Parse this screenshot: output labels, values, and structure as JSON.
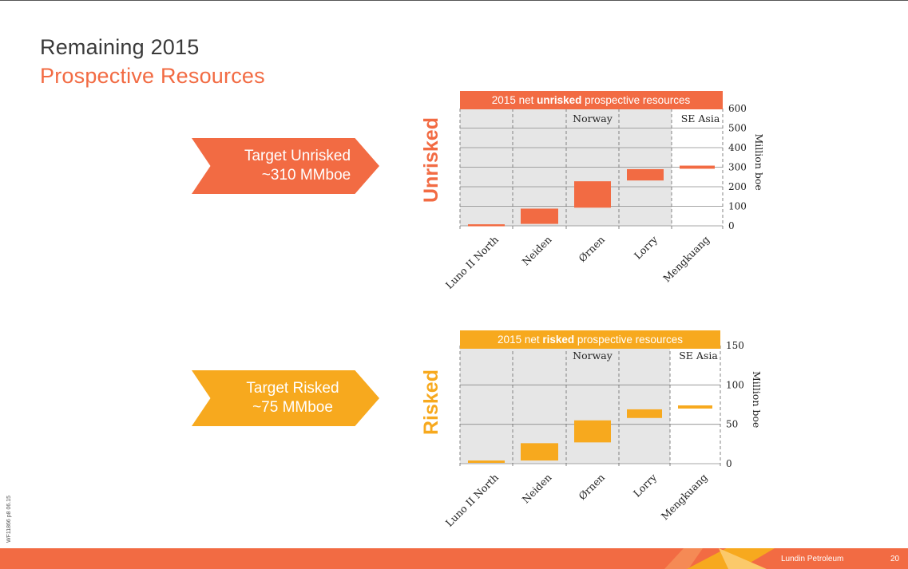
{
  "slide": {
    "title_line1": "Remaining 2015",
    "title_line2": "Prospective Resources",
    "side_code": "WF11866 p8 06.15",
    "footer_company": "Lundin Petroleum",
    "page_number": "20"
  },
  "arrows": {
    "unrisked_line1": "Target Unrisked",
    "unrisked_line2": "~310 MMboe",
    "risked_line1": "Target Risked",
    "risked_line2": "~75 MMboe"
  },
  "side_labels": {
    "unrisked": "Unrisked",
    "risked": "Risked"
  },
  "colors": {
    "orange": "#f26b43",
    "amber": "#f7a91e",
    "panel": "#e6e6e6",
    "text": "#3a3a3a"
  },
  "chart_data": [
    {
      "type": "bar",
      "subtype": "waterfall",
      "title_parts": [
        "2015 net ",
        "unrisked",
        " prospective resources"
      ],
      "ylabel": "Million boe",
      "ylim": [
        0,
        600
      ],
      "yticks": [
        "0",
        "100",
        "200",
        "300",
        "400",
        "500",
        "600"
      ],
      "categories": [
        "Luno II North",
        "Neiden",
        "Ørnen",
        "Lorry",
        "Mengkuang"
      ],
      "values": [
        8,
        78,
        135,
        58,
        16
      ],
      "starts": [
        0,
        10,
        93,
        232,
        292
      ],
      "region_labels": [
        "Norway",
        "SE Asia"
      ],
      "grid": true,
      "color": "#f26b43"
    },
    {
      "type": "bar",
      "subtype": "waterfall",
      "title_parts": [
        "2015 net ",
        "risked",
        " prospective resources"
      ],
      "ylabel": "Million boe",
      "ylim": [
        0,
        150
      ],
      "yticks": [
        "0",
        "50",
        "100",
        "150"
      ],
      "categories": [
        "Luno II North",
        "Neiden",
        "Ørnen",
        "Lorry",
        "Mengkuang"
      ],
      "values": [
        3,
        22,
        28,
        11,
        4
      ],
      "starts": [
        1,
        4,
        27,
        58,
        70
      ],
      "region_labels": [
        "Norway",
        "SE Asia"
      ],
      "grid": true,
      "color": "#f7a91e"
    }
  ]
}
